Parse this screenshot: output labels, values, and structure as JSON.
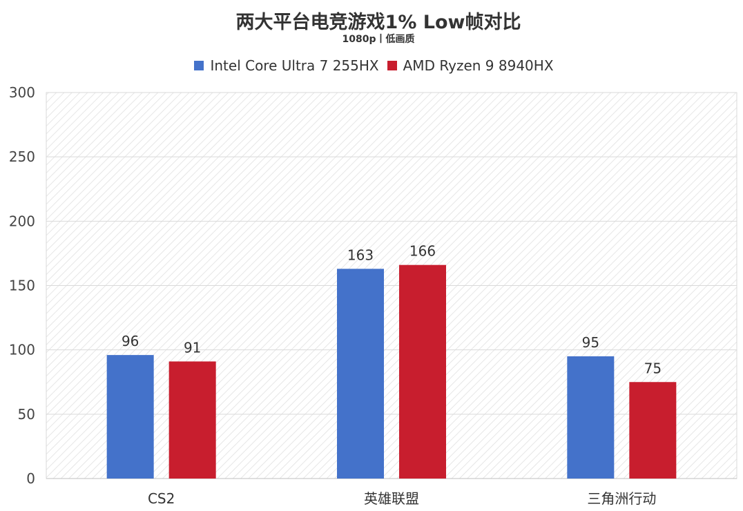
{
  "chart_data": {
    "type": "bar",
    "title": "两大平台电竞游戏1% Low帧对比",
    "subtitle": "1080p丨低画质",
    "categories": [
      "CS2",
      "英雄联盟",
      "三角洲行动"
    ],
    "series": [
      {
        "name": "Intel Core Ultra 7 255HX",
        "color": "#4472CA",
        "values": [
          96,
          163,
          95
        ]
      },
      {
        "name": "AMD Ryzen 9 8940HX",
        "color": "#C81E2E",
        "values": [
          91,
          166,
          75
        ]
      }
    ],
    "ylim": [
      0,
      300
    ],
    "yticks": [
      0,
      50,
      100,
      150,
      200,
      250,
      300
    ],
    "grid": true,
    "legend_position": "top"
  }
}
